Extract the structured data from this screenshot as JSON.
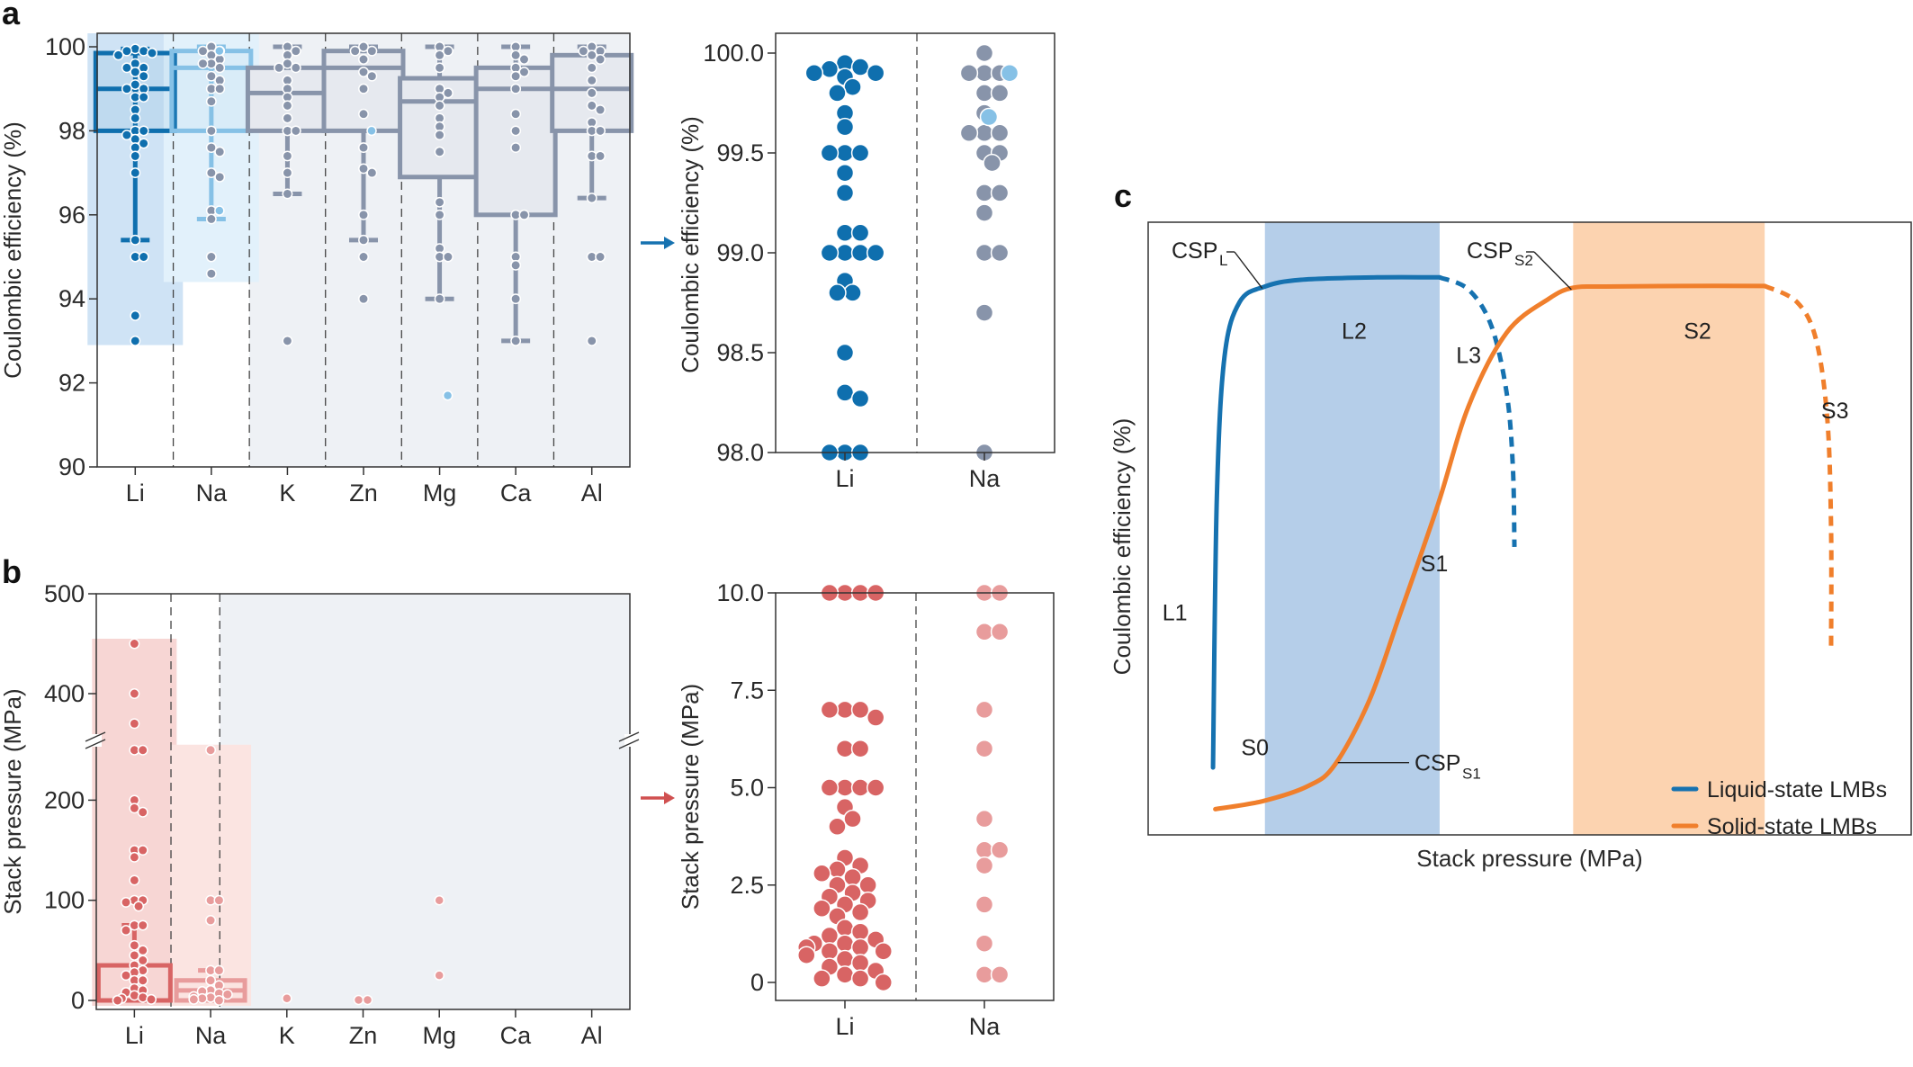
{
  "panels": {
    "a": {
      "label": "a"
    },
    "b": {
      "label": "b"
    },
    "c": {
      "label": "c"
    }
  },
  "colors": {
    "li": "#0f6fae",
    "li_light": "#cfe3f5",
    "na_box": "#86c1e6",
    "na_bg": "#e2f1fb",
    "others": "#8894aa",
    "others_bg": "#eef1f5",
    "others_box_fill": "#e6e9ef",
    "na_point_highlight": "#86c1e6",
    "li_red": "#d86464",
    "li_red_bg": "#f7d6d4",
    "na_red": "#e89c9c",
    "na_red_bg": "#fbe4e1",
    "liquid": "#1672b0",
    "solid": "#f07f2c",
    "band_blue": "#b5cee9",
    "band_orange": "#fcd3b0"
  },
  "chart_data": [
    {
      "id": "a-left",
      "type": "box",
      "title": "",
      "ylabel": "Coulombic efficiency (%)",
      "xlabel": "",
      "ylim": [
        90,
        100
      ],
      "yticks": [
        "90",
        "92",
        "94",
        "96",
        "98",
        "100"
      ],
      "categories": [
        "Li",
        "Na",
        "K",
        "Zn",
        "Mg",
        "Ca",
        "Al"
      ],
      "highlighted_range": {
        "Li": [
          92.9,
          100
        ],
        "Na": [
          94.4,
          100
        ]
      },
      "boxes": [
        {
          "cat": "Li",
          "whisker_low": 95.4,
          "q1": 98.0,
          "median": 99.0,
          "q3": 99.85,
          "whisker_high": 99.95,
          "points": [
            99.95,
            99.9,
            99.9,
            99.85,
            99.8,
            99.6,
            99.5,
            99.5,
            99.4,
            99.3,
            99.1,
            99.0,
            99.0,
            98.8,
            98.8,
            98.5,
            98.3,
            98.0,
            98.0,
            97.9,
            97.8,
            97.7,
            97.6,
            97.4,
            97.0,
            95.4,
            95.0,
            95.0,
            93.6,
            93.0
          ]
        },
        {
          "cat": "Na",
          "whisker_low": 95.9,
          "q1": 98.0,
          "median": 99.5,
          "q3": 99.9,
          "whisker_high": 100.0,
          "points": [
            100.0,
            99.9,
            99.9,
            99.8,
            99.7,
            99.6,
            99.6,
            99.5,
            99.3,
            99.2,
            99.0,
            99.0,
            98.7,
            98.0,
            97.6,
            97.5,
            97.0,
            96.9,
            96.1,
            95.9,
            95.0,
            94.6
          ],
          "light_points": [
            99.9,
            96.1
          ]
        },
        {
          "cat": "K",
          "whisker_low": 96.5,
          "q1": 98.0,
          "median": 98.9,
          "q3": 99.5,
          "whisker_high": 100.0,
          "points": [
            100.0,
            99.9,
            99.8,
            99.6,
            99.5,
            99.5,
            99.2,
            99.0,
            98.8,
            98.6,
            98.3,
            98.0,
            98.0,
            97.4,
            97.0,
            96.5,
            93.0
          ]
        },
        {
          "cat": "Zn",
          "whisker_low": 95.4,
          "q1": 98.0,
          "median": 99.5,
          "q3": 99.9,
          "whisker_high": 100.0,
          "points": [
            100.0,
            99.9,
            99.9,
            99.7,
            99.4,
            99.3,
            99.0,
            98.4,
            97.6,
            97.1,
            97.0,
            96.0,
            95.4,
            95.0,
            94.0
          ],
          "light_points": [
            98.0
          ]
        },
        {
          "cat": "Mg",
          "whisker_low": 94.0,
          "q1": 96.9,
          "median": 98.7,
          "q3": 99.25,
          "whisker_high": 100.0,
          "points": [
            100.0,
            99.9,
            99.8,
            99.5,
            99.0,
            98.9,
            98.8,
            98.6,
            98.3,
            98.1,
            97.9,
            97.5,
            96.3,
            96.0,
            95.2,
            95.0,
            95.0,
            94.0
          ],
          "light_points": [
            91.7
          ]
        },
        {
          "cat": "Ca",
          "whisker_low": 93.0,
          "q1": 96.0,
          "median": 99.0,
          "q3": 99.5,
          "whisker_high": 100.0,
          "points": [
            100.0,
            99.8,
            99.7,
            99.5,
            99.4,
            99.3,
            99.0,
            98.4,
            98.0,
            97.6,
            96.0,
            96.0,
            95.0,
            94.8,
            94.0,
            93.0
          ]
        },
        {
          "cat": "Al",
          "whisker_low": 96.4,
          "q1": 98.0,
          "median": 99.0,
          "q3": 99.8,
          "whisker_high": 100.0,
          "points": [
            100.0,
            99.9,
            99.9,
            99.8,
            99.7,
            99.5,
            99.2,
            98.9,
            98.6,
            98.5,
            98.2,
            98.0,
            98.0,
            97.4,
            97.4,
            96.4,
            95.0,
            95.0,
            93.0
          ]
        }
      ]
    },
    {
      "id": "a-right",
      "type": "scatter",
      "ylabel": "Coulombic efficiency (%)",
      "ylim": [
        98.0,
        100.0
      ],
      "yticks": [
        "98.0",
        "98.5",
        "99.0",
        "99.5",
        "100.0"
      ],
      "categories": [
        "Li",
        "Na"
      ],
      "series": [
        {
          "name": "Li",
          "values": [
            99.95,
            99.93,
            99.92,
            99.9,
            99.9,
            99.9,
            99.88,
            99.83,
            99.8,
            99.7,
            99.63,
            99.5,
            99.5,
            99.5,
            99.4,
            99.3,
            99.1,
            99.1,
            99.0,
            99.0,
            99.0,
            99.0,
            98.86,
            98.8,
            98.8,
            98.5,
            98.3,
            98.27,
            98.0,
            98.0,
            98.0
          ]
        },
        {
          "name": "Na",
          "values": [
            100.0,
            99.9,
            99.9,
            99.9,
            99.8,
            99.8,
            99.7,
            99.6,
            99.6,
            99.6,
            99.5,
            99.5,
            99.45,
            99.3,
            99.3,
            99.2,
            99.0,
            99.0,
            98.7,
            98.0
          ],
          "light_values": [
            99.9,
            99.68
          ]
        }
      ]
    },
    {
      "id": "b-left",
      "type": "box",
      "ylabel": "Stack pressure (MPa)",
      "yaxis_break": [
        250,
        350
      ],
      "ylim": [
        0,
        500
      ],
      "yticks": [
        "0",
        "100",
        "200",
        "400",
        "500"
      ],
      "categories": [
        "Li",
        "Na",
        "K",
        "Zn",
        "Mg",
        "Ca",
        "Al"
      ],
      "highlighted_range": {
        "Li": [
          0,
          455
        ],
        "Na": [
          0,
          250
        ]
      },
      "boxes": [
        {
          "cat": "Li",
          "whisker_low": 0,
          "q1": 1,
          "median": 1,
          "q3": 35,
          "whisker_high": 75,
          "points": [
            450,
            400,
            370,
            250,
            250,
            200,
            192,
            188,
            150,
            150,
            143,
            120,
            100,
            100,
            98,
            94,
            75,
            75,
            70,
            55,
            50,
            45,
            40,
            35,
            30,
            28,
            25,
            20,
            20,
            12,
            10,
            8,
            5,
            3,
            2,
            1,
            0,
            0
          ]
        },
        {
          "cat": "Na",
          "whisker_low": 0,
          "q1": 3,
          "median": 10,
          "q3": 20,
          "whisker_high": 30,
          "points": [
            250,
            100,
            100,
            80,
            30,
            30,
            20,
            15,
            10,
            9,
            7,
            6,
            4,
            3,
            2,
            1,
            0
          ]
        },
        {
          "cat": "K",
          "points": [
            2
          ]
        },
        {
          "cat": "Zn",
          "points": [
            0.5,
            0.5
          ]
        },
        {
          "cat": "Mg",
          "points": [
            100,
            25
          ]
        },
        {
          "cat": "Ca",
          "points": []
        },
        {
          "cat": "Al",
          "points": []
        }
      ]
    },
    {
      "id": "b-right",
      "type": "scatter",
      "ylabel": "Stack pressure (MPa)",
      "ylim": [
        0,
        10.0
      ],
      "yticks": [
        "0",
        "2.5",
        "5.0",
        "7.5",
        "10.0"
      ],
      "categories": [
        "Li",
        "Na"
      ],
      "series": [
        {
          "name": "Li",
          "values": [
            10,
            10,
            10,
            10,
            7,
            7,
            7,
            6.8,
            6,
            6,
            5,
            5,
            5,
            5,
            4.5,
            4.2,
            4.0,
            3.2,
            3.0,
            2.9,
            2.8,
            2.7,
            2.5,
            2.5,
            2.3,
            2.2,
            2.1,
            2.0,
            1.9,
            1.8,
            1.7,
            1.4,
            1.3,
            1.2,
            1.1,
            1.0,
            1.0,
            0.9,
            0.9,
            0.8,
            0.8,
            0.7,
            0.6,
            0.5,
            0.4,
            0.3,
            0.2,
            0.1,
            0.1,
            0
          ]
        },
        {
          "name": "Na",
          "values": [
            10,
            10,
            9,
            9,
            7,
            6,
            4.2,
            3.4,
            3.4,
            3.0,
            2.0,
            1.0,
            0.2,
            0.2
          ]
        }
      ]
    },
    {
      "id": "c",
      "type": "line",
      "title": "",
      "xlabel": "Stack pressure (MPa)",
      "ylabel": "Coulombic efficiency (%)",
      "xlim": [
        0,
        1
      ],
      "ylim": [
        0,
        1
      ],
      "legend": "bottom-right",
      "bands": [
        {
          "name": "liquid-optimal",
          "x": [
            0.153,
            0.382
          ],
          "color": "band_blue"
        },
        {
          "name": "solid-optimal",
          "x": [
            0.557,
            0.808
          ],
          "color": "band_orange"
        }
      ],
      "series": [
        {
          "name": "Liquid-state LMBs",
          "color": "liquid",
          "solid": [
            [
              0.085,
              0.11
            ],
            [
              0.09,
              0.55
            ],
            [
              0.1,
              0.78
            ],
            [
              0.12,
              0.87
            ],
            [
              0.153,
              0.895
            ],
            [
              0.2,
              0.906
            ],
            [
              0.3,
              0.91
            ],
            [
              0.382,
              0.91
            ]
          ],
          "dashed": [
            [
              0.382,
              0.91
            ],
            [
              0.42,
              0.89
            ],
            [
              0.45,
              0.83
            ],
            [
              0.47,
              0.72
            ],
            [
              0.478,
              0.6
            ],
            [
              0.48,
              0.47
            ]
          ]
        },
        {
          "name": "Solid-state LMBs",
          "color": "solid",
          "solid": [
            [
              0.088,
              0.042
            ],
            [
              0.15,
              0.055
            ],
            [
              0.21,
              0.08
            ],
            [
              0.245,
              0.115
            ],
            [
              0.29,
              0.22
            ],
            [
              0.33,
              0.36
            ],
            [
              0.38,
              0.54
            ],
            [
              0.42,
              0.7
            ],
            [
              0.47,
              0.82
            ],
            [
              0.525,
              0.875
            ],
            [
              0.557,
              0.893
            ],
            [
              0.6,
              0.895
            ],
            [
              0.7,
              0.896
            ],
            [
              0.808,
              0.896
            ]
          ],
          "dashed": [
            [
              0.808,
              0.896
            ],
            [
              0.85,
              0.87
            ],
            [
              0.875,
              0.81
            ],
            [
              0.89,
              0.68
            ],
            [
              0.895,
              0.5
            ],
            [
              0.895,
              0.3
            ]
          ]
        }
      ],
      "annotations": [
        {
          "text": "CSP",
          "sub": "L",
          "at": [
            0.153,
            0.895
          ]
        },
        {
          "text": "CSP",
          "sub": "S2",
          "at": [
            0.557,
            0.893
          ]
        },
        {
          "text": "CSP",
          "sub": "S1",
          "at": [
            0.245,
            0.115
          ]
        },
        {
          "text": "L1",
          "at": [
            0.035,
            0.35
          ]
        },
        {
          "text": "L2",
          "at": [
            0.27,
            0.81
          ]
        },
        {
          "text": "L3",
          "at": [
            0.42,
            0.77
          ]
        },
        {
          "text": "S0",
          "at": [
            0.14,
            0.13
          ]
        },
        {
          "text": "S1",
          "at": [
            0.375,
            0.43
          ]
        },
        {
          "text": "S2",
          "at": [
            0.72,
            0.81
          ]
        },
        {
          "text": "S3",
          "at": [
            0.9,
            0.68
          ]
        }
      ]
    }
  ]
}
